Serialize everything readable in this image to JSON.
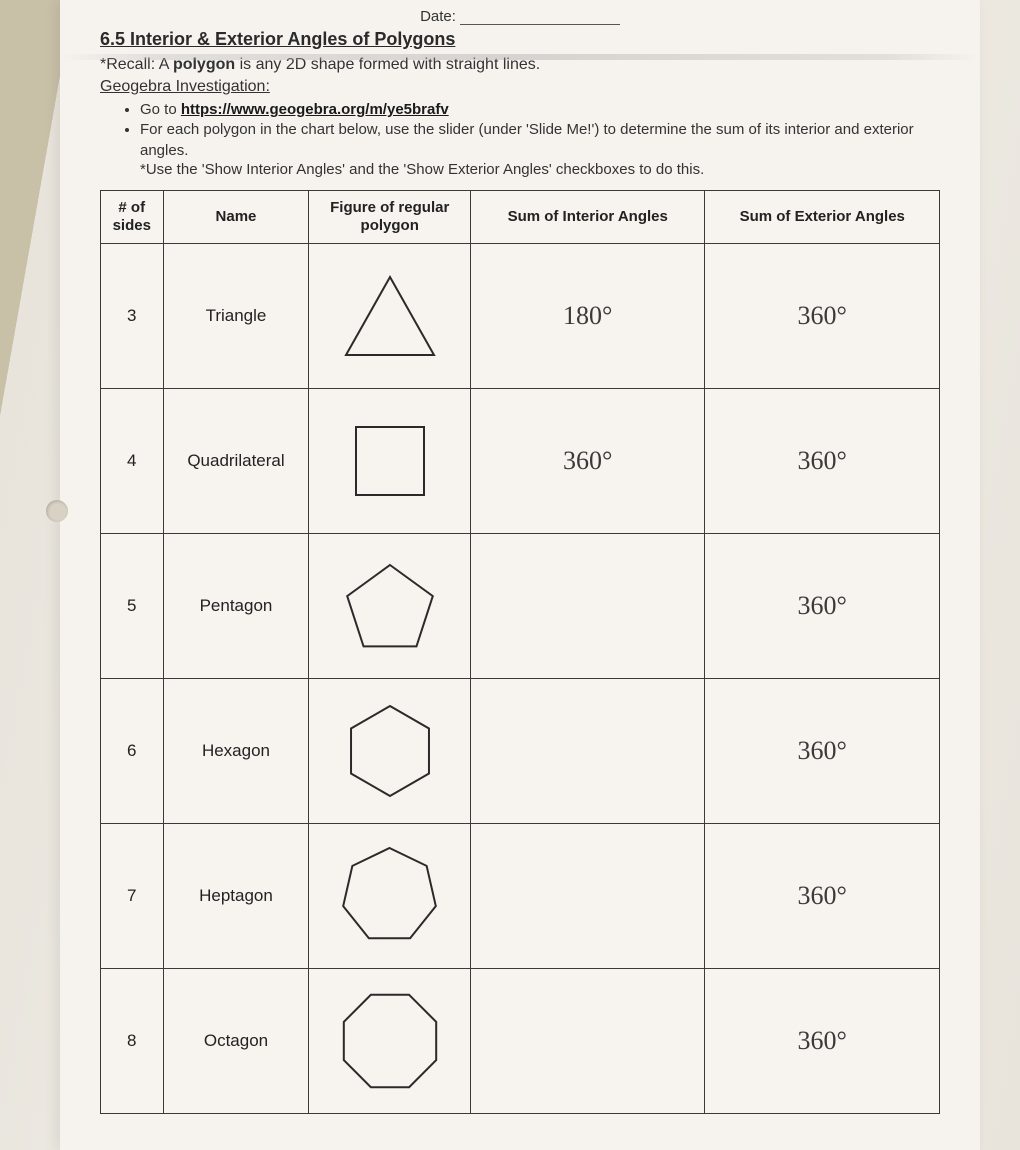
{
  "header": {
    "date_label": "Date:",
    "section_title": "6.5 Interior & Exterior Angles of Polygons",
    "recall_prefix": "*Recall: A ",
    "recall_bold": "polygon",
    "recall_suffix": " is any 2D shape formed with straight lines.",
    "sub_heading": "Geogebra Investigation:",
    "bullet1_prefix": "Go to ",
    "bullet1_link": "https://www.geogebra.org/m/ye5brafv",
    "bullet2": "For each polygon in the chart below, use the slider (under 'Slide Me!') to determine the sum of its interior and exterior angles.",
    "note": "*Use the 'Show Interior Angles' and the 'Show Exterior Angles' checkboxes to do this."
  },
  "table": {
    "columns": {
      "sides": "# of sides",
      "name": "Name",
      "figure": "Figure of regular polygon",
      "interior": "Sum of Interior Angles",
      "exterior": "Sum of Exterior Angles"
    },
    "rows": [
      {
        "sides": "3",
        "name": "Triangle",
        "shape": "triangle",
        "interior": "180°",
        "exterior": "360°"
      },
      {
        "sides": "4",
        "name": "Quadrilateral",
        "shape": "square",
        "interior": "360°",
        "exterior": "360°"
      },
      {
        "sides": "5",
        "name": "Pentagon",
        "shape": "pentagon",
        "interior": "",
        "exterior": "360°"
      },
      {
        "sides": "6",
        "name": "Hexagon",
        "shape": "hexagon",
        "interior": "",
        "exterior": "360°"
      },
      {
        "sides": "7",
        "name": "Heptagon",
        "shape": "heptagon",
        "interior": "",
        "exterior": "360°"
      },
      {
        "sides": "8",
        "name": "Octagon",
        "shape": "octagon",
        "interior": "",
        "exterior": "360°"
      }
    ]
  },
  "style": {
    "shape_stroke": "#2a2a2a",
    "shape_stroke_width": 2,
    "shape_fill": "none",
    "handwriting_color": "#3a3a3a",
    "border_color": "#3a3a3a",
    "paper_bg": "#f6f3ee",
    "shape_sizes": {
      "triangle": 100,
      "square": 80,
      "pentagon": 110,
      "hexagon": 110,
      "heptagon": 115,
      "octagon": 120
    }
  }
}
